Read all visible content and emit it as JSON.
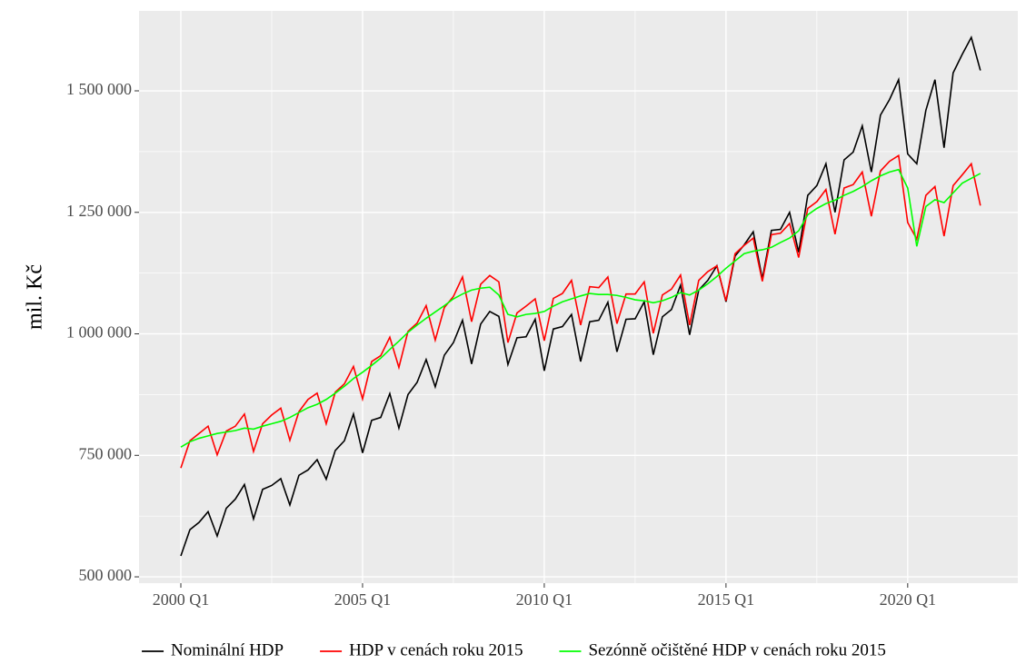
{
  "chart_data": {
    "type": "line",
    "y_label": "mil. Kč",
    "x": [
      2000,
      2000.25,
      2000.5,
      2000.75,
      2001,
      2001.25,
      2001.5,
      2001.75,
      2002,
      2002.25,
      2002.5,
      2002.75,
      2003,
      2003.25,
      2003.5,
      2003.75,
      2004,
      2004.25,
      2004.5,
      2004.75,
      2005,
      2005.25,
      2005.5,
      2005.75,
      2006,
      2006.25,
      2006.5,
      2006.75,
      2007,
      2007.25,
      2007.5,
      2007.75,
      2008,
      2008.25,
      2008.5,
      2008.75,
      2009,
      2009.25,
      2009.5,
      2009.75,
      2010,
      2010.25,
      2010.5,
      2010.75,
      2011,
      2011.25,
      2011.5,
      2011.75,
      2012,
      2012.25,
      2012.5,
      2012.75,
      2013,
      2013.25,
      2013.5,
      2013.75,
      2014,
      2014.25,
      2014.5,
      2014.75,
      2015,
      2015.25,
      2015.5,
      2015.75,
      2016,
      2016.25,
      2016.5,
      2016.75,
      2017,
      2017.25,
      2017.5,
      2017.75,
      2018,
      2018.25,
      2018.5,
      2018.75,
      2019,
      2019.25,
      2019.5,
      2019.75,
      2020,
      2020.25,
      2020.5,
      2020.75,
      2021,
      2021.25,
      2021.5,
      2021.75,
      2022
    ],
    "series": [
      {
        "name": "Nominální HDP",
        "color": "#000000",
        "values": [
          543000,
          597000,
          612000,
          634000,
          584000,
          641000,
          660000,
          690000,
          619000,
          680000,
          688000,
          702000,
          648000,
          709000,
          720000,
          741000,
          701000,
          760000,
          780000,
          835000,
          755000,
          822000,
          828000,
          877000,
          806000,
          875000,
          900000,
          947000,
          891000,
          956000,
          982000,
          1028000,
          938000,
          1020000,
          1046000,
          1036000,
          937000,
          992000,
          994000,
          1030000,
          924000,
          1010000,
          1015000,
          1040000,
          943000,
          1025000,
          1028000,
          1065000,
          963000,
          1030000,
          1031000,
          1066000,
          957000,
          1035000,
          1050000,
          1100000,
          998000,
          1090000,
          1110000,
          1140000,
          1066000,
          1160000,
          1183000,
          1210000,
          1113000,
          1213000,
          1215000,
          1250000,
          1168000,
          1285000,
          1305000,
          1350000,
          1250000,
          1358000,
          1374000,
          1428000,
          1333000,
          1450000,
          1482000,
          1523000,
          1370000,
          1350000,
          1460000,
          1523000,
          1383000,
          1537000,
          1575000,
          1610000,
          1542000
        ]
      },
      {
        "name": "HDP v cenách roku 2015",
        "color": "#ff0000",
        "values": [
          724000,
          780000,
          795000,
          810000,
          751000,
          800000,
          810000,
          835000,
          758000,
          815000,
          833000,
          847000,
          781000,
          840000,
          865000,
          878000,
          815000,
          880000,
          897000,
          933000,
          866000,
          943000,
          955000,
          993000,
          931000,
          1005000,
          1022000,
          1058000,
          987000,
          1054000,
          1077000,
          1117000,
          1025000,
          1102000,
          1120000,
          1107000,
          982000,
          1043000,
          1057000,
          1072000,
          986000,
          1073000,
          1083000,
          1110000,
          1018000,
          1097000,
          1095000,
          1117000,
          1021000,
          1082000,
          1082000,
          1107000,
          1001000,
          1080000,
          1092000,
          1121000,
          1018000,
          1110000,
          1128000,
          1140000,
          1068000,
          1165000,
          1182000,
          1197000,
          1108000,
          1204000,
          1207000,
          1227000,
          1157000,
          1258000,
          1272000,
          1297000,
          1205000,
          1300000,
          1307000,
          1333000,
          1242000,
          1335000,
          1355000,
          1367000,
          1229000,
          1195000,
          1285000,
          1303000,
          1201000,
          1305000,
          1327000,
          1350000,
          1264000
        ]
      },
      {
        "name": "Sezónně očištěné HDP v cenách roku 2015",
        "color": "#00ff00",
        "values": [
          767000,
          778000,
          785000,
          790000,
          795000,
          798000,
          801000,
          806000,
          804000,
          810000,
          815000,
          820000,
          828000,
          838000,
          848000,
          855000,
          865000,
          878000,
          892000,
          908000,
          921000,
          935000,
          950000,
          968000,
          985000,
          1003000,
          1018000,
          1032000,
          1045000,
          1058000,
          1072000,
          1082000,
          1090000,
          1094000,
          1096000,
          1080000,
          1040000,
          1035000,
          1040000,
          1042000,
          1046000,
          1057000,
          1066000,
          1072000,
          1078000,
          1083000,
          1081000,
          1081000,
          1079000,
          1075000,
          1070000,
          1068000,
          1064000,
          1068000,
          1075000,
          1085000,
          1080000,
          1090000,
          1103000,
          1118000,
          1135000,
          1150000,
          1165000,
          1170000,
          1173000,
          1178000,
          1188000,
          1197000,
          1212000,
          1245000,
          1258000,
          1268000,
          1275000,
          1285000,
          1293000,
          1303000,
          1315000,
          1325000,
          1333000,
          1338000,
          1300000,
          1180000,
          1262000,
          1276000,
          1270000,
          1290000,
          1310000,
          1320000,
          1330000
        ]
      }
    ],
    "xlim": [
      1998.85,
      2023.03
    ],
    "xticks": [
      {
        "value": 2000,
        "label": "2000 Q1"
      },
      {
        "value": 2005,
        "label": "2005 Q1"
      },
      {
        "value": 2010,
        "label": "2010 Q1"
      },
      {
        "value": 2015,
        "label": "2015 Q1"
      },
      {
        "value": 2020,
        "label": "2020 Q1"
      }
    ],
    "ylim": [
      487000,
      1664500
    ],
    "yticks": [
      {
        "value": 500000,
        "label": "500 000"
      },
      {
        "value": 750000,
        "label": "750 000"
      },
      {
        "value": 1000000,
        "label": "1 000 000"
      },
      {
        "value": 1250000,
        "label": "1 250 000"
      },
      {
        "value": 1500000,
        "label": "1 500 000"
      }
    ],
    "grid": true,
    "legend": "bottom"
  }
}
